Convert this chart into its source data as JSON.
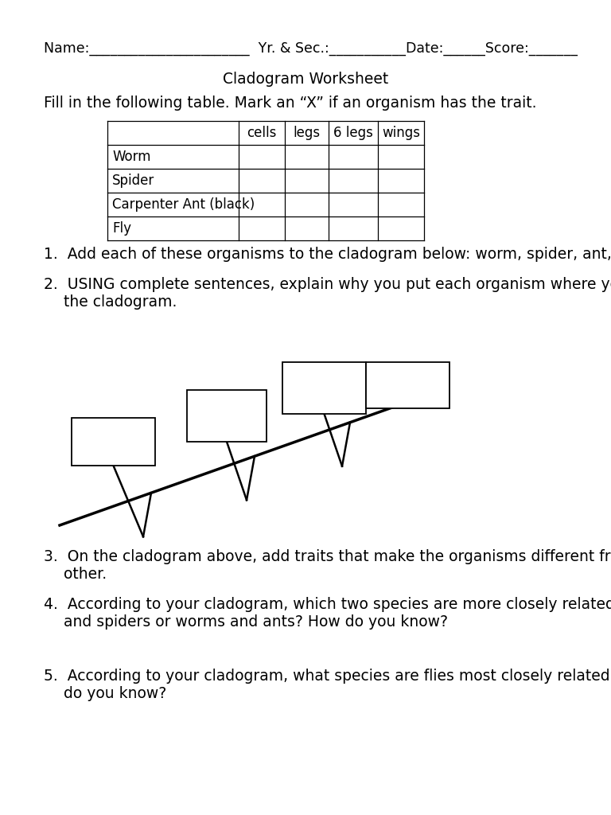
{
  "title": "Cladogram Worksheet",
  "header_text": "Name:_______________________  Yr. & Sec.:___________Date:______Score:_______",
  "fill_instruction": "Fill in the following table. Mark an “X” if an organism has the trait.",
  "table_headers": [
    "",
    "cells",
    "legs",
    "6 legs",
    "wings"
  ],
  "table_rows": [
    "Worm",
    "Spider",
    "Carpenter Ant (black)",
    "Fly"
  ],
  "q1": "Add each of these organisms to the cladogram below: worm, spider, ant, fly",
  "q2_line1": "USING complete sentences, explain why you put each organism where you did on",
  "q2_line2": "the cladogram.",
  "q3_line1": "On the cladogram above, add traits that make the organisms different from each",
  "q3_line2": "other.",
  "q4_line1": "According to your cladogram, which two species are more closely related: worms",
  "q4_line2": "and spiders or worms and ants? How do you know?",
  "q5_line1": "According to your cladogram, what species are flies most closely related to? How",
  "q5_line2": "do you know?",
  "bg_color": "#ffffff",
  "text_color": "#000000"
}
